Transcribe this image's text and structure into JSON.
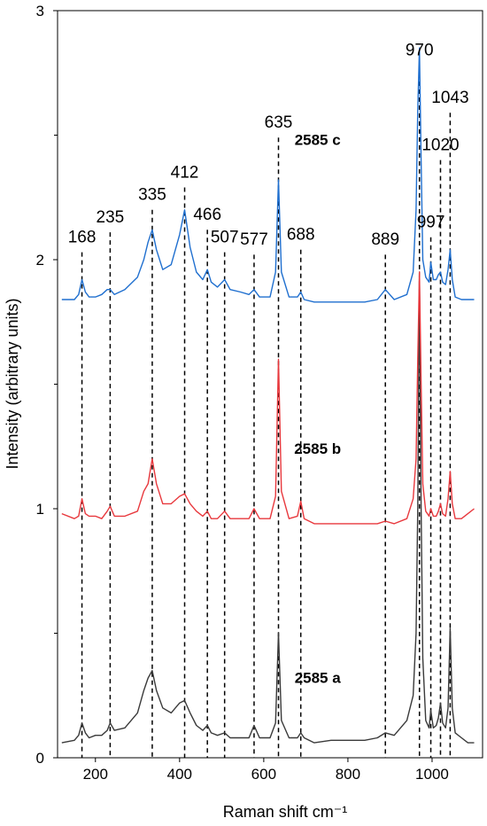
{
  "chart_data": {
    "type": "line",
    "title": "",
    "xlabel": "Raman shift cm⁻¹",
    "ylabel": "Intensity (arbitrary units)",
    "xlim": [
      110,
      1120
    ],
    "ylim": [
      0,
      3
    ],
    "x_ticks": [
      200,
      400,
      600,
      800,
      1000
    ],
    "y_ticks": [
      0,
      1,
      2,
      3
    ],
    "y_minor_ticks": [
      0.5,
      1.5,
      2.5
    ],
    "grid": false,
    "colors": {
      "a": "#3a3a3a",
      "b": "#e8383d",
      "c": "#1f6fcf",
      "reference_lines": "#000000"
    },
    "series": [
      {
        "name": "2585 a",
        "label_x": 728,
        "label_y": 0.3,
        "x": [
          120,
          150,
          160,
          168,
          176,
          185,
          200,
          215,
          228,
          235,
          245,
          270,
          300,
          315,
          325,
          335,
          345,
          360,
          380,
          400,
          412,
          425,
          440,
          455,
          466,
          475,
          490,
          507,
          520,
          545,
          565,
          577,
          590,
          615,
          628,
          635,
          642,
          660,
          680,
          688,
          696,
          720,
          760,
          800,
          840,
          870,
          889,
          910,
          940,
          955,
          962,
          966,
          970,
          974,
          978,
          985,
          993,
          997,
          1003,
          1010,
          1015,
          1020,
          1025,
          1032,
          1038,
          1043,
          1048,
          1055,
          1070,
          1085,
          1100
        ],
        "values": [
          0.06,
          0.07,
          0.09,
          0.14,
          0.1,
          0.08,
          0.09,
          0.09,
          0.11,
          0.14,
          0.11,
          0.12,
          0.18,
          0.27,
          0.32,
          0.35,
          0.27,
          0.2,
          0.18,
          0.22,
          0.23,
          0.18,
          0.13,
          0.11,
          0.13,
          0.1,
          0.09,
          0.1,
          0.08,
          0.08,
          0.08,
          0.13,
          0.08,
          0.08,
          0.14,
          0.5,
          0.15,
          0.08,
          0.08,
          0.1,
          0.08,
          0.06,
          0.07,
          0.07,
          0.07,
          0.08,
          0.1,
          0.09,
          0.15,
          0.25,
          0.5,
          1.0,
          1.95,
          1.0,
          0.4,
          0.15,
          0.12,
          0.19,
          0.12,
          0.13,
          0.16,
          0.22,
          0.14,
          0.12,
          0.2,
          0.52,
          0.2,
          0.1,
          0.08,
          0.06,
          0.06
        ]
      },
      {
        "name": "2585 b",
        "label_x": 728,
        "label_y": 1.22,
        "x": [
          120,
          150,
          160,
          168,
          176,
          185,
          200,
          215,
          228,
          235,
          245,
          270,
          300,
          315,
          325,
          335,
          345,
          360,
          380,
          400,
          412,
          425,
          440,
          455,
          466,
          475,
          490,
          507,
          520,
          545,
          565,
          577,
          590,
          615,
          628,
          635,
          642,
          660,
          680,
          688,
          696,
          720,
          760,
          800,
          840,
          870,
          889,
          910,
          940,
          955,
          962,
          966,
          970,
          974,
          978,
          985,
          993,
          997,
          1003,
          1010,
          1015,
          1020,
          1025,
          1032,
          1038,
          1043,
          1048,
          1055,
          1070,
          1085,
          1100
        ],
        "values": [
          0.98,
          0.96,
          0.97,
          1.04,
          0.98,
          0.97,
          0.97,
          0.96,
          0.99,
          1.01,
          0.97,
          0.97,
          0.99,
          1.07,
          1.1,
          1.2,
          1.1,
          1.02,
          1.02,
          1.05,
          1.06,
          1.02,
          0.99,
          0.97,
          0.99,
          0.96,
          0.96,
          0.99,
          0.96,
          0.96,
          0.96,
          1.0,
          0.96,
          0.96,
          1.05,
          1.6,
          1.07,
          0.96,
          0.97,
          1.03,
          0.96,
          0.94,
          0.94,
          0.94,
          0.94,
          0.94,
          0.95,
          0.94,
          0.96,
          1.04,
          1.2,
          1.6,
          1.95,
          1.5,
          1.1,
          0.99,
          0.97,
          1.0,
          0.97,
          0.97,
          0.99,
          1.02,
          0.98,
          0.97,
          1.04,
          1.15,
          1.02,
          0.96,
          0.96,
          0.98,
          1.0
        ]
      },
      {
        "name": "2585 c",
        "label_x": 728,
        "label_y": 2.46,
        "x": [
          120,
          150,
          160,
          168,
          176,
          185,
          200,
          215,
          228,
          235,
          245,
          270,
          300,
          315,
          325,
          335,
          345,
          360,
          380,
          400,
          412,
          425,
          440,
          455,
          466,
          475,
          490,
          507,
          520,
          545,
          565,
          577,
          590,
          615,
          628,
          635,
          642,
          660,
          680,
          688,
          696,
          720,
          760,
          800,
          840,
          870,
          889,
          910,
          940,
          955,
          962,
          966,
          970,
          974,
          978,
          985,
          993,
          997,
          1003,
          1010,
          1015,
          1020,
          1025,
          1032,
          1038,
          1043,
          1048,
          1055,
          1070,
          1085,
          1100
        ],
        "values": [
          1.84,
          1.84,
          1.86,
          1.92,
          1.87,
          1.85,
          1.85,
          1.86,
          1.88,
          1.88,
          1.86,
          1.88,
          1.93,
          2.0,
          2.07,
          2.12,
          2.04,
          1.96,
          1.98,
          2.1,
          2.2,
          2.05,
          1.95,
          1.92,
          1.96,
          1.91,
          1.89,
          1.92,
          1.88,
          1.87,
          1.86,
          1.88,
          1.85,
          1.85,
          1.95,
          2.32,
          1.95,
          1.85,
          1.85,
          1.87,
          1.84,
          1.83,
          1.83,
          1.83,
          1.83,
          1.84,
          1.88,
          1.84,
          1.86,
          1.95,
          2.2,
          2.6,
          2.85,
          2.4,
          2.0,
          1.93,
          1.91,
          1.99,
          1.92,
          1.92,
          1.94,
          1.95,
          1.91,
          1.9,
          1.96,
          2.04,
          1.92,
          1.85,
          1.84,
          1.84,
          1.84
        ]
      }
    ],
    "reference_lines": [
      {
        "x": 168,
        "label": "168",
        "y_top": 2.03,
        "label_y": 2.07
      },
      {
        "x": 235,
        "label": "235",
        "y_top": 2.11,
        "label_y": 2.15
      },
      {
        "x": 335,
        "label": "335",
        "y_top": 2.2,
        "label_y": 2.24
      },
      {
        "x": 412,
        "label": "412",
        "y_top": 2.29,
        "label_y": 2.33
      },
      {
        "x": 466,
        "label": "466",
        "y_top": 2.12,
        "label_y": 2.16
      },
      {
        "x": 507,
        "label": "507",
        "y_top": 2.03,
        "label_y": 2.07
      },
      {
        "x": 577,
        "label": "577",
        "y_top": 2.02,
        "label_y": 2.06
      },
      {
        "x": 635,
        "label": "635",
        "y_top": 2.49,
        "label_y": 2.53
      },
      {
        "x": 688,
        "label": "688",
        "y_top": 2.04,
        "label_y": 2.08
      },
      {
        "x": 889,
        "label": "889",
        "y_top": 2.02,
        "label_y": 2.06
      },
      {
        "x": 970,
        "label": "970",
        "y_top": 2.78,
        "label_y": 2.82
      },
      {
        "x": 997,
        "label": "997",
        "y_top": 2.09,
        "label_y": 2.13
      },
      {
        "x": 1020,
        "label": "1020",
        "y_top": 2.4,
        "label_y": 2.44
      },
      {
        "x": 1043,
        "label": "1043",
        "y_top": 2.59,
        "label_y": 2.63
      }
    ]
  }
}
